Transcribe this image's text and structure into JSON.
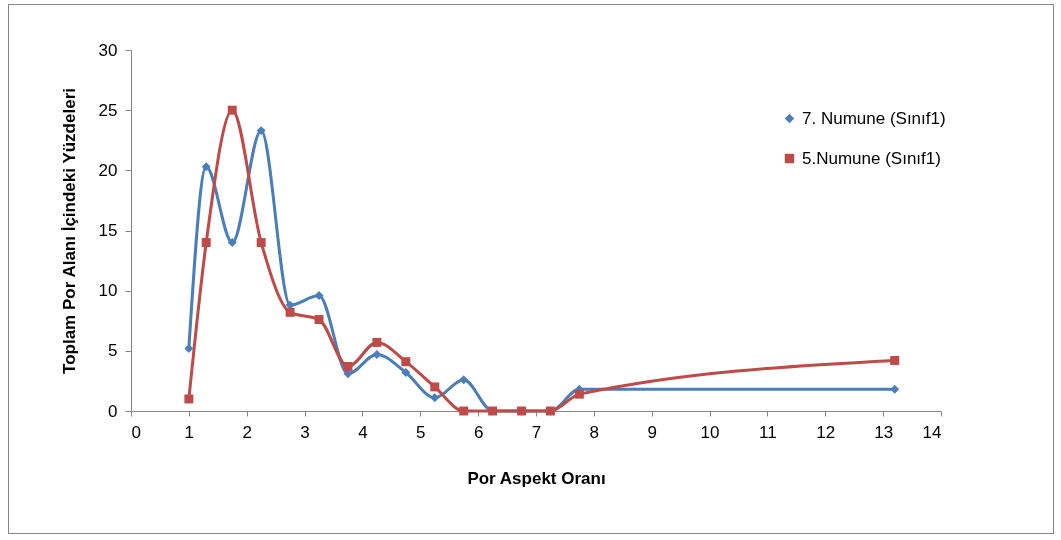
{
  "chart_data": {
    "type": "line",
    "xlabel": "Por Aspekt Oranı",
    "ylabel": "Toplam Por Alanı İçindeki Yüzdeleri",
    "x": [
      1,
      1.3,
      1.75,
      2.25,
      2.75,
      3.25,
      3.75,
      4.25,
      4.75,
      5.25,
      5.75,
      6.25,
      6.75,
      7.25,
      7.75,
      13.2
    ],
    "series": [
      {
        "name": "7. Numune (Sınıf1)",
        "color": "#4a7ebb",
        "marker": "diamond",
        "values": [
          5.2,
          20.3,
          14.0,
          23.3,
          8.8,
          9.6,
          3.1,
          4.7,
          3.2,
          1.1,
          2.6,
          0,
          0,
          0,
          1.8,
          1.8
        ]
      },
      {
        "name": "5.Numune (Sınıf1)",
        "color": "#be4b48",
        "marker": "square",
        "values": [
          1,
          14,
          25,
          14,
          8.2,
          7.6,
          3.7,
          5.7,
          4.1,
          2.0,
          0,
          0,
          0,
          0,
          1.4,
          4.2
        ]
      }
    ],
    "xlim": [
      0,
      14
    ],
    "xticks": [
      0,
      1,
      2,
      3,
      4,
      5,
      6,
      7,
      8,
      9,
      10,
      11,
      12,
      13,
      14
    ],
    "ylim": [
      0,
      30
    ],
    "yticks": [
      0,
      5,
      10,
      15,
      20,
      25,
      30
    ],
    "grid": false,
    "legend": "top right",
    "line_style": "solid"
  }
}
